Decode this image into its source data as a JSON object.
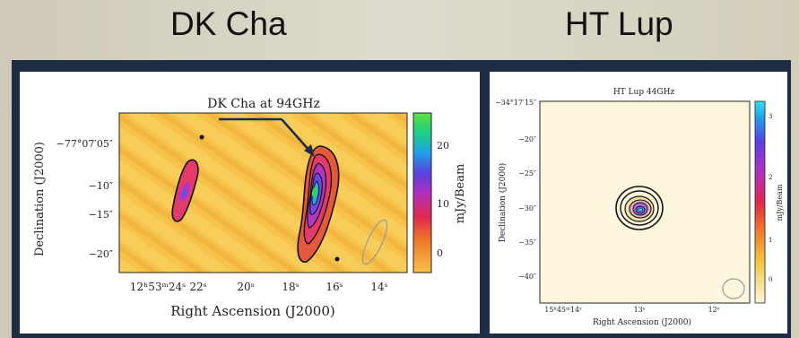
{
  "slide": {
    "left_title": "DK Cha",
    "right_title": "HT Lup"
  },
  "left_map": {
    "title": "DK Cha at 94GHz",
    "xlabel": "Right Ascension (J2000)",
    "ylabel": "Declination (J2000)",
    "colorbar_label": "mJy/Beam",
    "x_ticks": [
      "12ʰ53ᵐ24ˢ",
      "22ˢ",
      "20ˢ",
      "18ˢ",
      "16ˢ",
      "14ˢ"
    ],
    "y_ticks": [
      "−77°07′05″",
      "−10″",
      "−15″",
      "−20″"
    ],
    "colorbar_ticks": [
      "20",
      "10",
      "0"
    ]
  },
  "right_map": {
    "title": "HT Lup 44GHz",
    "xlabel": "Right Ascension (J2000)",
    "ylabel": "Declination (J2000)",
    "colorbar_label": "mJy/Beam",
    "x_ticks": [
      "15ʰ45ᵐ14ˢ",
      "13ˢ",
      "12ˢ"
    ],
    "y_ticks": [
      "−34°17′15″",
      "−20″",
      "−25″",
      "−30″",
      "−35″",
      "−40″"
    ],
    "colorbar_ticks": [
      "3",
      "2",
      "1",
      "0"
    ]
  },
  "colors": {
    "border": "#1d2d45",
    "map_background_left": "#f6c24a",
    "map_background_right": "#fdf6dc"
  }
}
